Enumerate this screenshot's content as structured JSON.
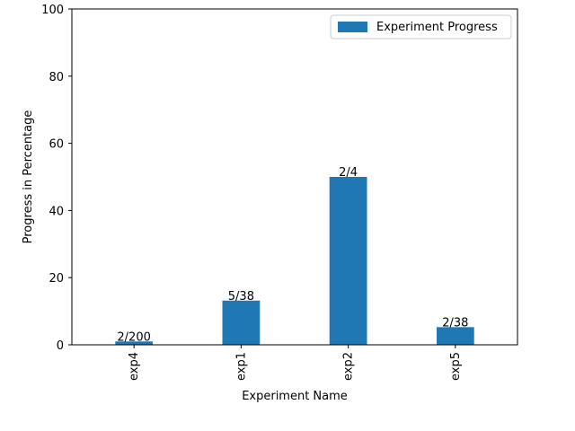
{
  "chart_data": {
    "type": "bar",
    "title": "",
    "xlabel": "Experiment Name",
    "ylabel": "Progress in Percentage",
    "categories": [
      "exp4",
      "exp1",
      "exp2",
      "exp5"
    ],
    "series": [
      {
        "name": "Experiment Progress",
        "color": "#1f77b4",
        "values": [
          1,
          13.16,
          50,
          5.26
        ],
        "labels": [
          "2/200",
          "5/38",
          "2/4",
          "2/38"
        ]
      }
    ],
    "ylim": [
      0,
      100
    ],
    "yticks": [
      0,
      20,
      40,
      60,
      80,
      100
    ],
    "grid": false,
    "legend_position": "top-right"
  }
}
